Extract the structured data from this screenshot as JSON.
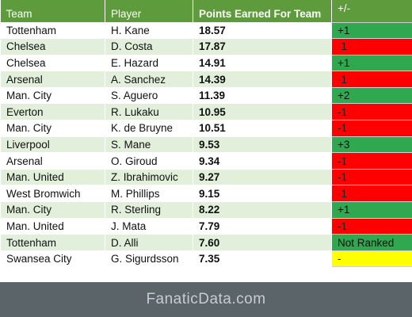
{
  "table": {
    "headers": {
      "team": "Team",
      "player": "Player",
      "points": "Points Earned For Team",
      "change": "+/-"
    },
    "rows": [
      {
        "team": "Tottenham",
        "player": "H. Kane",
        "points": "18.57",
        "change": "+1",
        "trend": "up"
      },
      {
        "team": "Chelsea",
        "player": "D. Costa",
        "points": "17.87",
        "change": "-1",
        "trend": "down"
      },
      {
        "team": "Chelsea",
        "player": "E. Hazard",
        "points": "14.91",
        "change": "+1",
        "trend": "up"
      },
      {
        "team": "Arsenal",
        "player": "A. Sanchez",
        "points": "14.39",
        "change": "-1",
        "trend": "down"
      },
      {
        "team": "Man. City",
        "player": "S. Aguero",
        "points": "11.39",
        "change": "+2",
        "trend": "up"
      },
      {
        "team": "Everton",
        "player": "R. Lukaku",
        "points": "10.95",
        "change": "-1",
        "trend": "down"
      },
      {
        "team": "Man. City",
        "player": "K. de Bruyne",
        "points": "10.51",
        "change": "-1",
        "trend": "down"
      },
      {
        "team": "Liverpool",
        "player": "S. Mane",
        "points": "9.53",
        "change": "+3",
        "trend": "up"
      },
      {
        "team": "Arsenal",
        "player": "O. Giroud",
        "points": "9.34",
        "change": "-1",
        "trend": "down"
      },
      {
        "team": "Man. United",
        "player": "Z. Ibrahimovic",
        "points": "9.27",
        "change": "-1",
        "trend": "down"
      },
      {
        "team": "West Bromwich",
        "player": "M. Phillips",
        "points": "9.15",
        "change": "-1",
        "trend": "down"
      },
      {
        "team": "Man. City",
        "player": "R. Sterling",
        "points": "8.22",
        "change": "+1",
        "trend": "up"
      },
      {
        "team": "Man. United",
        "player": "J. Mata",
        "points": "7.79",
        "change": "-1",
        "trend": "down"
      },
      {
        "team": "Tottenham",
        "player": "D. Alli",
        "points": "7.60",
        "change": "Not Ranked",
        "trend": "up"
      },
      {
        "team": "Swansea City",
        "player": "G. Sigurdsson",
        "points": "7.35",
        "change": "-",
        "trend": "neutral"
      }
    ]
  },
  "footer": {
    "brand": "FanaticData.com"
  },
  "colors": {
    "header_bg": "#5e9b3c",
    "row_alt_bg": "#e2efda",
    "up": "#2fa84f",
    "down": "#ff0000",
    "neutral": "#ffff00",
    "footer_bg": "#5b6469"
  }
}
